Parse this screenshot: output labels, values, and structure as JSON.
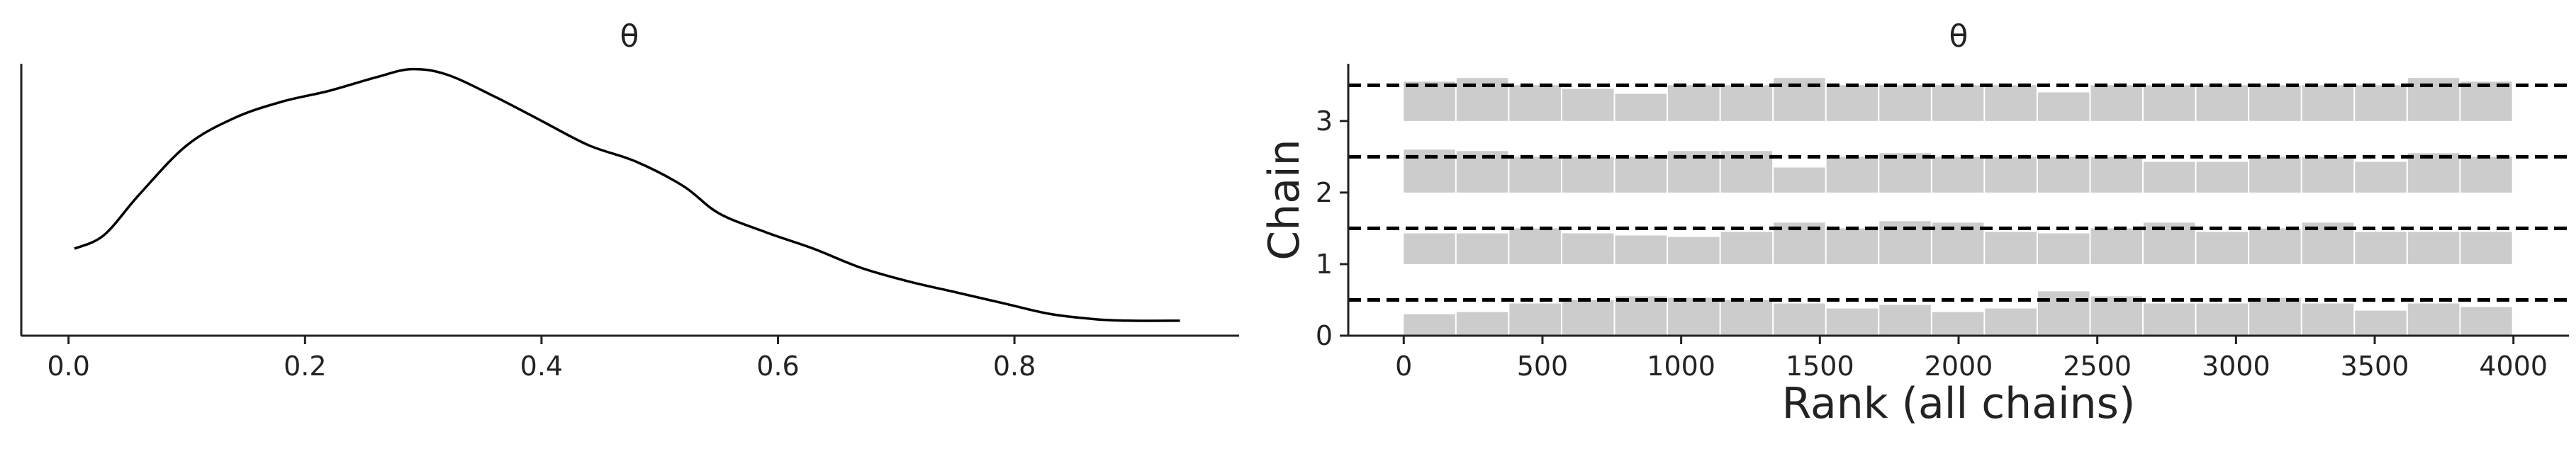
{
  "chart_data": [
    {
      "type": "line",
      "title": "θ",
      "xlabel": "",
      "ylabel": "",
      "xlim": [
        -0.04,
        0.99
      ],
      "ylim": [
        0,
        1
      ],
      "x_ticks": [
        0.0,
        0.2,
        0.4,
        0.6,
        0.8
      ],
      "x_tick_labels": [
        "0.0",
        "0.2",
        "0.4",
        "0.6",
        "0.8"
      ],
      "grid": false,
      "series": [
        {
          "x": [
            0.005,
            0.03,
            0.06,
            0.1,
            0.14,
            0.18,
            0.22,
            0.26,
            0.29,
            0.32,
            0.36,
            0.4,
            0.44,
            0.48,
            0.52,
            0.55,
            0.59,
            0.63,
            0.67,
            0.71,
            0.75,
            0.79,
            0.83,
            0.87,
            0.9,
            0.94
          ],
          "y": [
            0.32,
            0.37,
            0.52,
            0.7,
            0.8,
            0.86,
            0.9,
            0.95,
            0.98,
            0.96,
            0.88,
            0.79,
            0.7,
            0.64,
            0.55,
            0.45,
            0.38,
            0.32,
            0.25,
            0.2,
            0.16,
            0.12,
            0.08,
            0.06,
            0.055,
            0.055
          ]
        }
      ]
    },
    {
      "type": "bar",
      "title": "θ",
      "xlabel": "Rank (all chains)",
      "ylabel": "Chain",
      "xlim": [
        -200,
        4200
      ],
      "ylim": [
        0,
        3.8
      ],
      "x_ticks": [
        0,
        500,
        1000,
        1500,
        2000,
        2500,
        3000,
        3500,
        4000
      ],
      "x_tick_labels": [
        "0",
        "500",
        "1000",
        "1500",
        "2000",
        "2500",
        "3000",
        "3500",
        "4000"
      ],
      "y_ticks": [
        0,
        1,
        2,
        3
      ],
      "y_tick_labels": [
        "0",
        "1",
        "2",
        "3"
      ],
      "grid": false,
      "bin_edges": [
        0,
        190.5,
        381,
        571.5,
        762,
        952.5,
        1143,
        1333.5,
        1524,
        1714.5,
        1905,
        2095.5,
        2286,
        2476.5,
        2667,
        2857.5,
        3048,
        3238.5,
        3429,
        3619.5,
        3810,
        4000
      ],
      "reference_lines": [
        0.5,
        1.5,
        2.5,
        3.5
      ],
      "series": [
        {
          "name": "0",
          "values": [
            0.3,
            0.33,
            0.45,
            0.5,
            0.55,
            0.53,
            0.5,
            0.45,
            0.38,
            0.43,
            0.33,
            0.38,
            0.62,
            0.55,
            0.45,
            0.45,
            0.53,
            0.45,
            0.35,
            0.45,
            0.4
          ]
        },
        {
          "name": "1",
          "values": [
            0.43,
            0.43,
            0.5,
            0.43,
            0.4,
            0.38,
            0.45,
            0.58,
            0.5,
            0.6,
            0.58,
            0.45,
            0.43,
            0.5,
            0.58,
            0.45,
            0.5,
            0.58,
            0.45,
            0.45,
            0.45
          ]
        },
        {
          "name": "2",
          "values": [
            0.6,
            0.58,
            0.5,
            0.5,
            0.5,
            0.58,
            0.58,
            0.35,
            0.5,
            0.55,
            0.5,
            0.5,
            0.5,
            0.5,
            0.43,
            0.43,
            0.5,
            0.5,
            0.43,
            0.55,
            0.5
          ]
        },
        {
          "name": "3",
          "values": [
            0.55,
            0.6,
            0.5,
            0.45,
            0.38,
            0.5,
            0.5,
            0.6,
            0.5,
            0.5,
            0.5,
            0.5,
            0.4,
            0.5,
            0.5,
            0.5,
            0.5,
            0.5,
            0.5,
            0.6,
            0.55
          ]
        }
      ]
    }
  ]
}
